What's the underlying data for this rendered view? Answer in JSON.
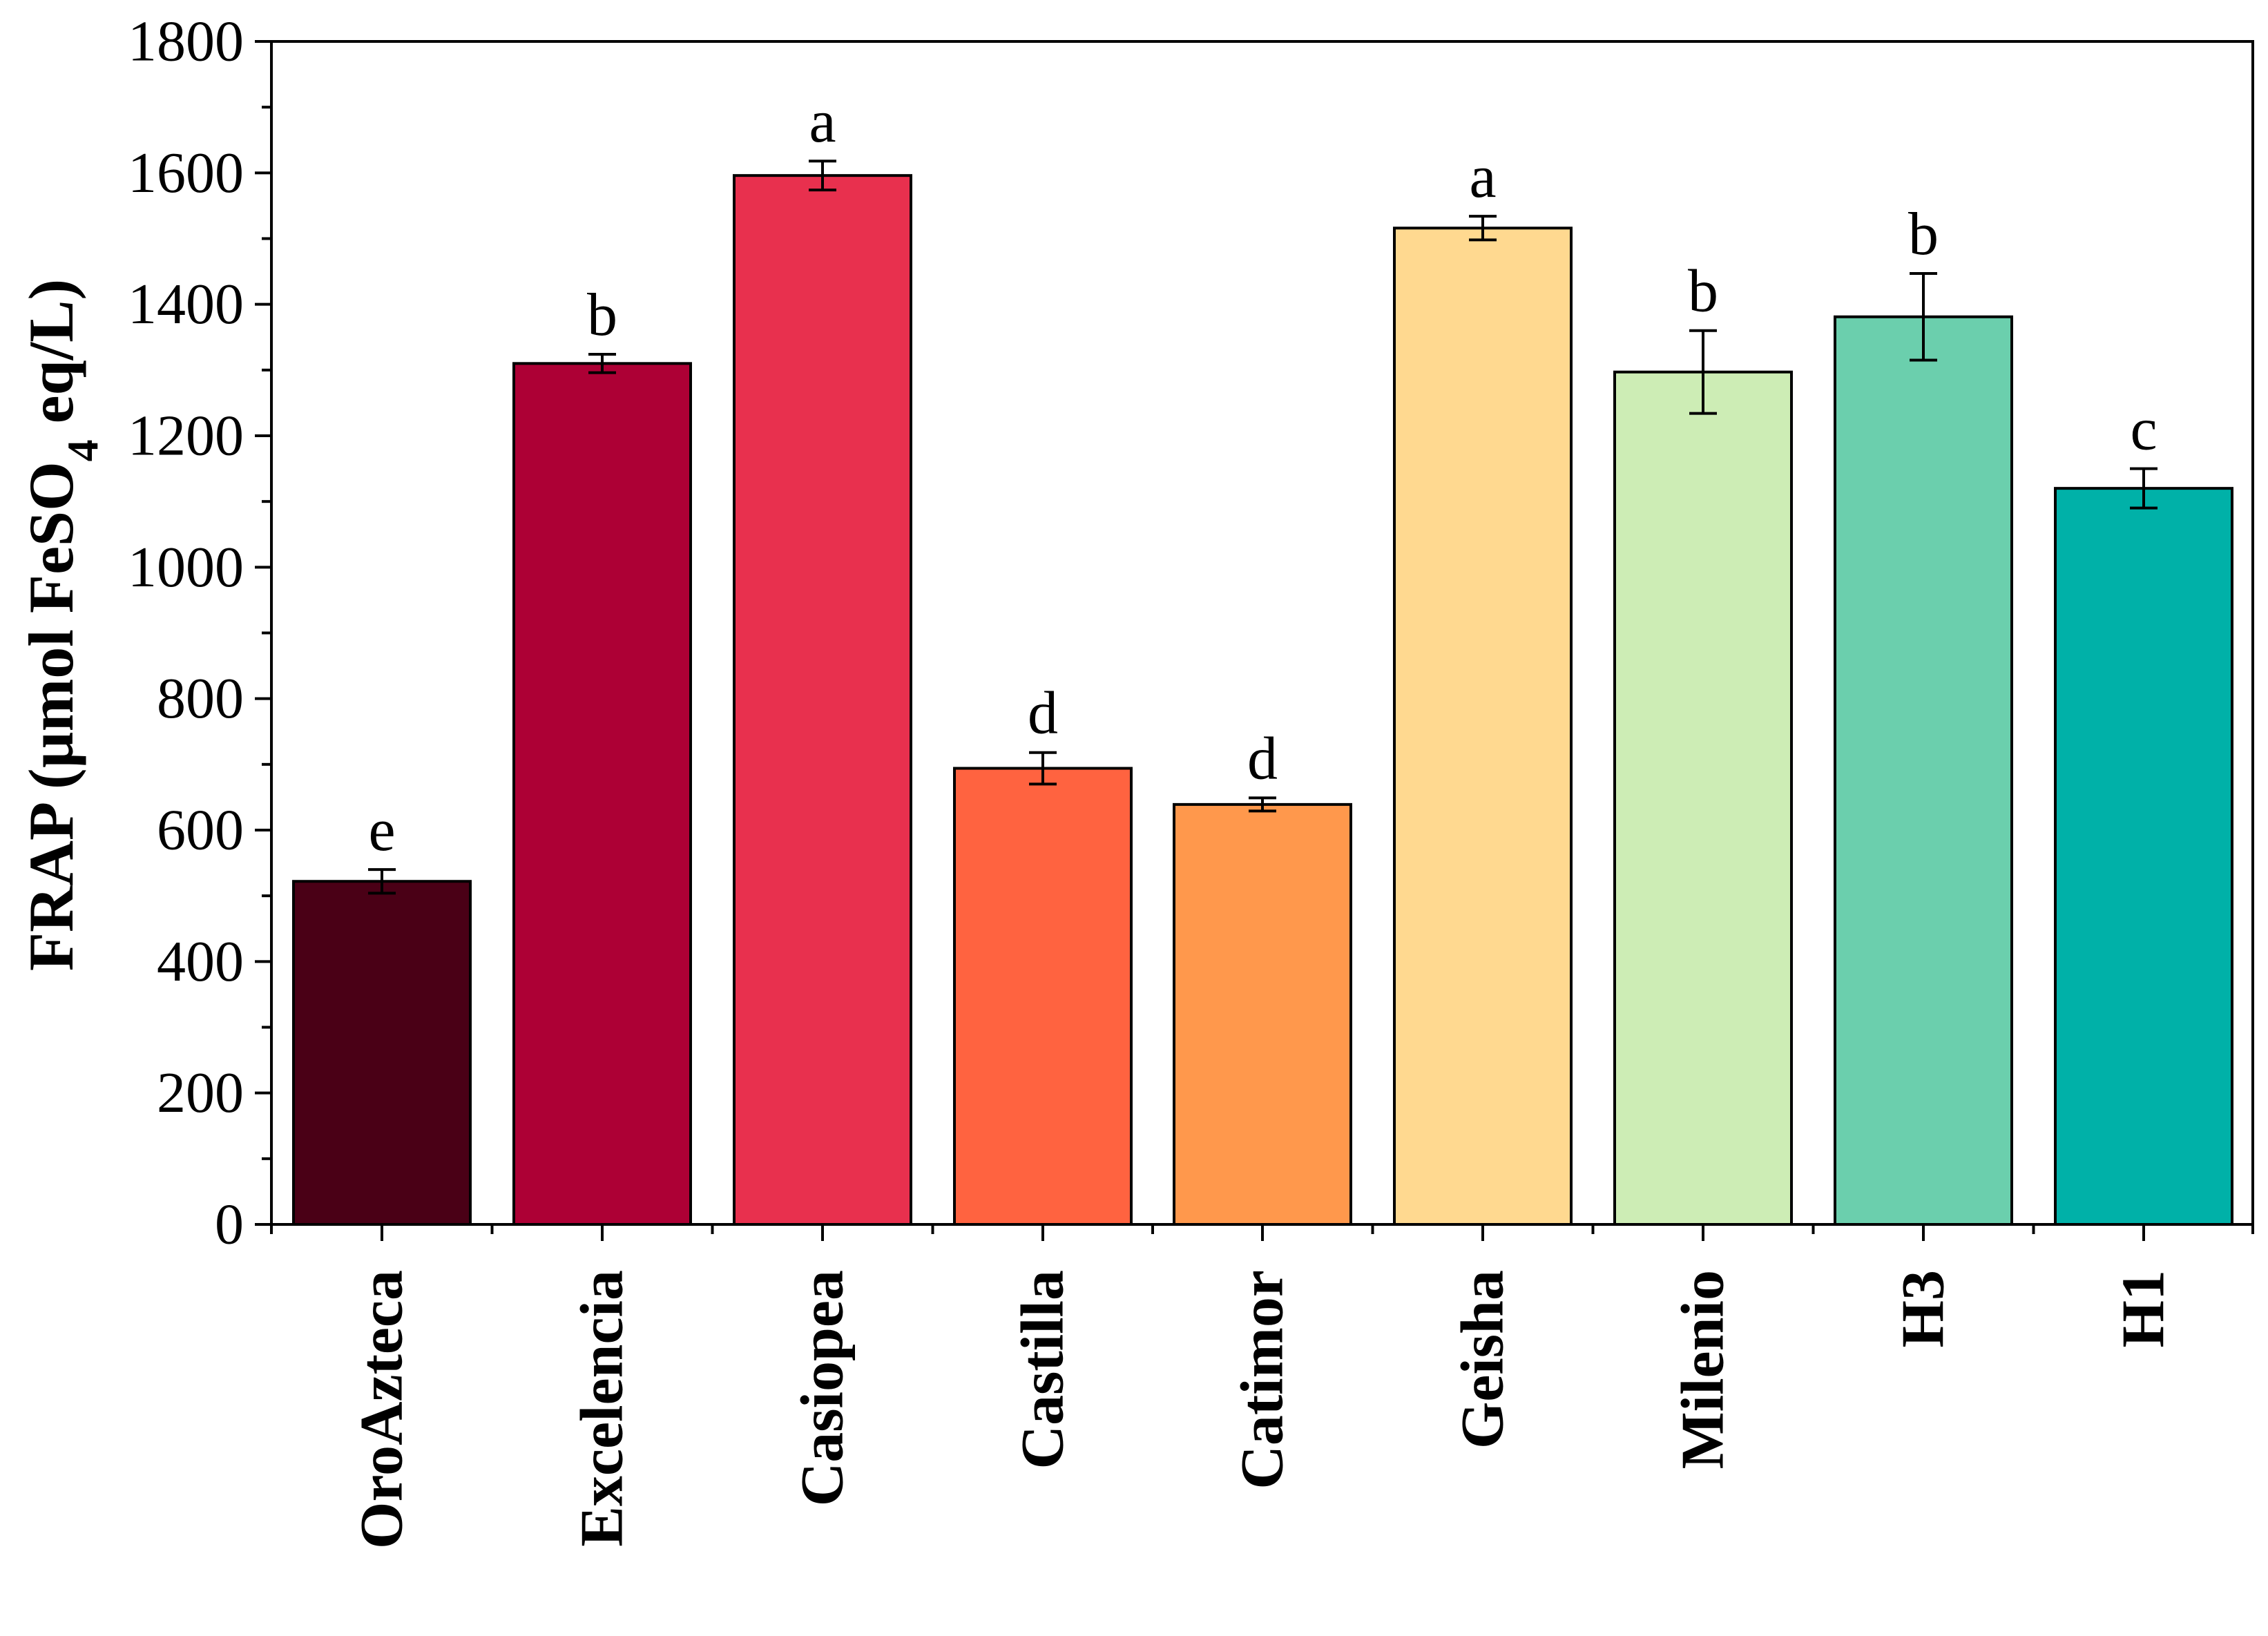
{
  "chart_data": {
    "type": "bar",
    "categories": [
      "OroAzteca",
      "Excelencia",
      "Casiopea",
      "Castilla",
      "Catimor",
      "Geisha",
      "Milenio",
      "H3",
      "H1"
    ],
    "values": [
      522,
      1310,
      1596,
      694,
      639,
      1516,
      1297,
      1381,
      1120
    ],
    "errors": [
      18,
      14,
      22,
      24,
      10,
      18,
      63,
      66,
      30
    ],
    "letters": [
      "e",
      "b",
      "a",
      "d",
      "d",
      "a",
      "b",
      "b",
      "c"
    ],
    "colors": [
      "#4a0016",
      "#ad0035",
      "#e8304e",
      "#ff6340",
      "#ff984c",
      "#ffd990",
      "#cdedb5",
      "#6bcfad",
      "#00b1a8"
    ],
    "ylabel": {
      "prefix": "FRAP (µmol FeSO",
      "subscript": "4",
      "suffix": " eq/L)"
    },
    "ylim": [
      0,
      1800
    ],
    "yticks": [
      0,
      200,
      400,
      600,
      800,
      1000,
      1200,
      1400,
      1600,
      1800
    ],
    "xlabel": "",
    "title": "",
    "grid": false,
    "legend": "none"
  }
}
